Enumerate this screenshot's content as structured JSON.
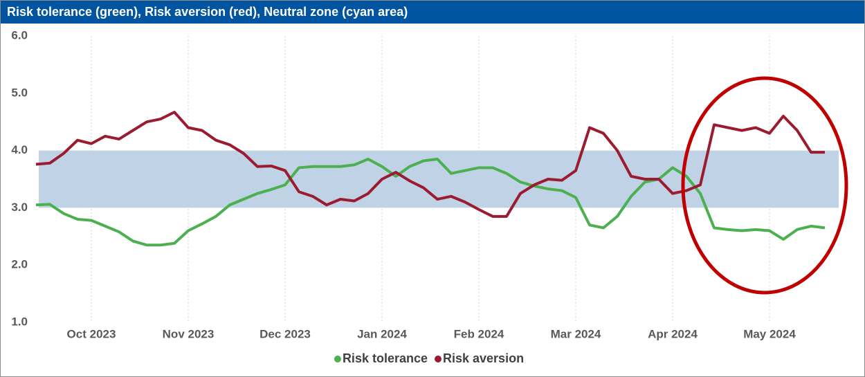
{
  "chart_data": {
    "type": "line",
    "title": "Risk tolerance (green), Risk aversion (red), Neutral zone (cyan area)",
    "categories": [
      null,
      null,
      null,
      null,
      "Oct 2023",
      null,
      null,
      null,
      null,
      null,
      null,
      "Nov 2023",
      null,
      null,
      null,
      null,
      null,
      null,
      "Dec 2023",
      null,
      null,
      null,
      null,
      null,
      null,
      "Jan 2024",
      null,
      null,
      null,
      null,
      null,
      null,
      "Feb 2024",
      null,
      null,
      null,
      null,
      null,
      null,
      "Mar 2024",
      null,
      null,
      null,
      null,
      null,
      null,
      "Apr 2024",
      null,
      null,
      null,
      null,
      null,
      null,
      "May 2024",
      null,
      null,
      null,
      null
    ],
    "series": [
      {
        "name": "Risk tolerance",
        "color": "#4caf50",
        "values": [
          3.05,
          3.06,
          2.9,
          2.8,
          2.78,
          2.68,
          2.58,
          2.42,
          2.35,
          2.35,
          2.38,
          2.6,
          2.72,
          2.85,
          3.05,
          3.15,
          3.25,
          3.32,
          3.4,
          3.7,
          3.72,
          3.72,
          3.72,
          3.75,
          3.85,
          3.72,
          3.55,
          3.72,
          3.82,
          3.85,
          3.6,
          3.65,
          3.7,
          3.7,
          3.6,
          3.45,
          3.38,
          3.33,
          3.3,
          3.18,
          2.7,
          2.65,
          2.85,
          3.2,
          3.45,
          3.5,
          3.7,
          3.55,
          3.25,
          2.65,
          2.62,
          2.6,
          2.62,
          2.6,
          2.45,
          2.62,
          2.68,
          2.65
        ]
      },
      {
        "name": "Risk aversion",
        "color": "#9b1b30",
        "values": [
          3.76,
          3.78,
          3.95,
          4.18,
          4.12,
          4.25,
          4.2,
          4.35,
          4.5,
          4.55,
          4.67,
          4.4,
          4.35,
          4.18,
          4.1,
          3.95,
          3.72,
          3.73,
          3.65,
          3.28,
          3.2,
          3.05,
          3.15,
          3.12,
          3.25,
          3.5,
          3.62,
          3.47,
          3.35,
          3.15,
          3.2,
          3.1,
          2.97,
          2.85,
          2.85,
          3.25,
          3.4,
          3.5,
          3.48,
          3.65,
          4.4,
          4.3,
          4.0,
          3.55,
          3.5,
          3.5,
          3.25,
          3.3,
          3.4,
          4.45,
          4.4,
          4.35,
          4.4,
          4.3,
          4.6,
          4.35,
          3.97,
          3.97
        ]
      }
    ],
    "band": {
      "ymin": 3,
      "ymax": 4,
      "color": "#c0d3e6"
    },
    "ylim": [
      1,
      6
    ],
    "yticks": [
      {
        "value": 1,
        "label": "1.0"
      },
      {
        "value": 2,
        "label": "2.0"
      },
      {
        "value": 3,
        "label": "3.0"
      },
      {
        "value": 4,
        "label": "4.0"
      },
      {
        "value": 5,
        "label": "5.0"
      },
      {
        "value": 6,
        "label": "6.0"
      }
    ],
    "grid": true,
    "legend": "bottom"
  }
}
